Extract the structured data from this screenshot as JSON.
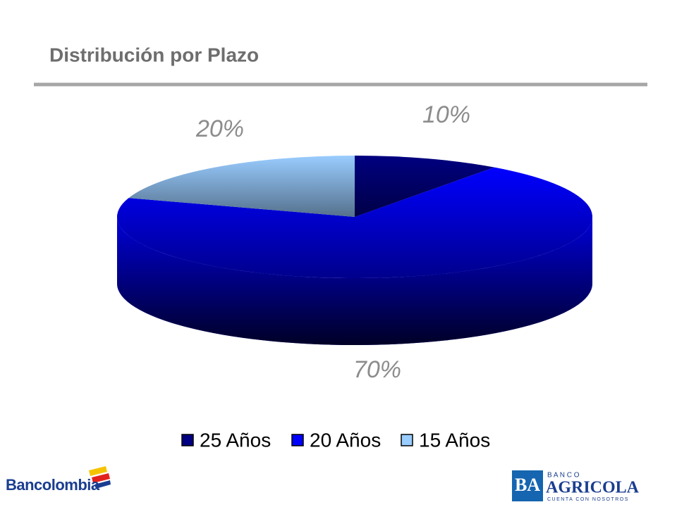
{
  "chart_data": {
    "type": "pie",
    "title": "Distribución por Plazo",
    "categories": [
      "25 Años",
      "20 Años",
      "15 Años"
    ],
    "values": [
      10,
      70,
      20
    ],
    "value_labels": [
      "10%",
      "70%",
      "20%"
    ],
    "colors": [
      "#000080",
      "#0000ff",
      "#99ccff"
    ]
  },
  "footer": {
    "left_logo": "Bancolombia",
    "right_logo": {
      "mark": "BA",
      "top": "B A N C O",
      "name": "AGRICOLA",
      "tagline": "CUENTA CON NOSOTROS"
    }
  }
}
